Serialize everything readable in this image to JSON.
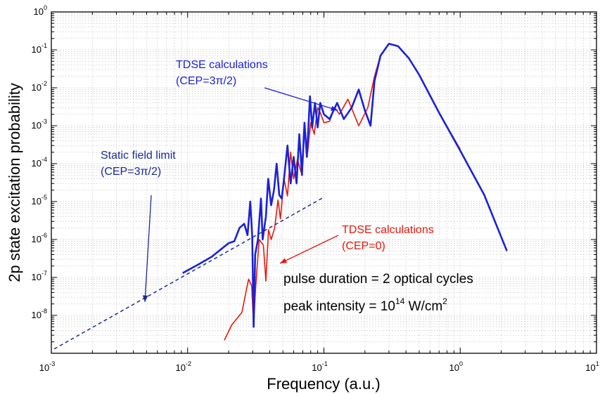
{
  "chart_data": {
    "type": "line",
    "xlabel": "Frequency (a.u.)",
    "ylabel": "2p state excitation probability",
    "xscale": "log",
    "yscale": "log",
    "xlim": [
      0.001,
      10
    ],
    "ylim": [
      1e-09,
      1
    ],
    "grid": true,
    "x_ticks": [
      {
        "base": "10",
        "exp": "-3"
      },
      {
        "base": "10",
        "exp": "-2"
      },
      {
        "base": "10",
        "exp": "-1"
      },
      {
        "base": "10",
        "exp": "0"
      },
      {
        "base": "10",
        "exp": "1"
      }
    ],
    "y_ticks": [
      {
        "base": "10",
        "exp": "0"
      },
      {
        "base": "10",
        "exp": "-1"
      },
      {
        "base": "10",
        "exp": "-2"
      },
      {
        "base": "10",
        "exp": "-3"
      },
      {
        "base": "10",
        "exp": "-4"
      },
      {
        "base": "10",
        "exp": "-5"
      },
      {
        "base": "10",
        "exp": "-6"
      },
      {
        "base": "10",
        "exp": "-7"
      },
      {
        "base": "10",
        "exp": "-8"
      }
    ],
    "series": [
      {
        "color": "#e8180c",
        "style": "solid",
        "points": [
          [
            0.0186,
            2.2e-09
          ],
          [
            0.021,
            5.5e-09
          ],
          [
            0.025,
            1.2e-08
          ],
          [
            0.028,
            9e-08
          ],
          [
            0.0295,
            6e-08
          ],
          [
            0.0305,
            5e-09
          ],
          [
            0.0315,
            5e-08
          ],
          [
            0.0335,
            1e-06
          ],
          [
            0.036,
            7e-07
          ],
          [
            0.0375,
            8e-08
          ],
          [
            0.0392,
            1.8e-06
          ],
          [
            0.041,
            1e-06
          ],
          [
            0.0435,
            2e-06
          ],
          [
            0.046,
            1.1e-05
          ],
          [
            0.048,
            3.5e-06
          ],
          [
            0.051,
            4e-05
          ],
          [
            0.054,
            1.4e-05
          ],
          [
            0.057,
            0.0002
          ],
          [
            0.06,
            4e-05
          ],
          [
            0.064,
            0.00013
          ],
          [
            0.068,
            6e-05
          ],
          [
            0.072,
            0.0007
          ],
          [
            0.076,
            0.0002
          ],
          [
            0.08,
            0.0012
          ],
          [
            0.085,
            0.0006
          ],
          [
            0.09,
            0.003
          ],
          [
            0.095,
            0.002
          ],
          [
            0.1,
            0.0012
          ],
          [
            0.11,
            0.0013
          ],
          [
            0.12,
            0.003
          ],
          [
            0.13,
            0.002
          ],
          [
            0.15,
            0.005
          ],
          [
            0.18,
            0.001
          ],
          [
            0.21,
            0.003
          ],
          [
            0.235,
            0.02
          ],
          [
            0.26,
            0.07
          ],
          [
            0.3,
            0.145
          ],
          [
            0.35,
            0.125
          ],
          [
            0.42,
            0.06
          ],
          [
            0.5,
            0.022
          ],
          [
            0.7,
            0.0022
          ],
          [
            1.0,
            0.00024
          ]
        ]
      },
      {
        "color": "#1a22d8",
        "style": "solid",
        "points": [
          [
            0.0092,
            1.3e-07
          ],
          [
            0.012,
            2.2e-07
          ],
          [
            0.015,
            3.5e-07
          ],
          [
            0.02,
            8e-07
          ],
          [
            0.022,
            9e-07
          ],
          [
            0.024,
            2e-06
          ],
          [
            0.026,
            2.6e-06
          ],
          [
            0.0275,
            1.3e-06
          ],
          [
            0.0288,
            1e-05
          ],
          [
            0.0298,
            1.2e-06
          ],
          [
            0.0305,
            5e-09
          ],
          [
            0.0313,
            4e-07
          ],
          [
            0.0328,
            1e-06
          ],
          [
            0.0345,
            1.2e-05
          ],
          [
            0.0355,
            1e-06
          ],
          [
            0.0375,
            4e-06
          ],
          [
            0.039,
            4e-05
          ],
          [
            0.041,
            8e-06
          ],
          [
            0.043,
            2e-05
          ],
          [
            0.045,
            0.0001
          ],
          [
            0.047,
            1.5e-05
          ],
          [
            0.049,
            1.2e-05
          ],
          [
            0.051,
            4e-05
          ],
          [
            0.054,
            0.0003
          ],
          [
            0.057,
            3e-05
          ],
          [
            0.06,
            0.00015
          ],
          [
            0.063,
            3e-05
          ],
          [
            0.066,
            0.0006
          ],
          [
            0.069,
            5e-05
          ],
          [
            0.072,
            0.0012
          ],
          [
            0.075,
            0.00015
          ],
          [
            0.079,
            0.006
          ],
          [
            0.082,
            0.0009
          ],
          [
            0.086,
            0.004
          ],
          [
            0.09,
            0.0009
          ],
          [
            0.094,
            0.004
          ],
          [
            0.1,
            0.002
          ],
          [
            0.11,
            0.0015
          ],
          [
            0.125,
            0.004
          ],
          [
            0.14,
            0.0015
          ],
          [
            0.16,
            0.003
          ],
          [
            0.18,
            0.009
          ],
          [
            0.2,
            0.0025
          ],
          [
            0.22,
            0.001
          ],
          [
            0.235,
            0.015
          ],
          [
            0.26,
            0.07
          ],
          [
            0.3,
            0.145
          ],
          [
            0.35,
            0.125
          ],
          [
            0.42,
            0.06
          ],
          [
            0.5,
            0.022
          ],
          [
            0.7,
            0.0022
          ],
          [
            1.0,
            0.00022
          ],
          [
            1.5,
            1.5e-05
          ],
          [
            2.2,
            5e-07
          ]
        ]
      },
      {
        "color": "#1a2a9a",
        "style": "dashed",
        "points": [
          [
            0.00105,
            1.3e-09
          ],
          [
            0.1,
            1.3e-05
          ]
        ]
      }
    ],
    "annotations": [
      {
        "lines": [
          "TDSE calculations",
          "(CEP=3π/2)"
        ],
        "color": "#1a22d8"
      },
      {
        "lines": [
          "Static field limit",
          "(CEP=3π/2)"
        ],
        "color": "#1a2a9a"
      },
      {
        "lines": [
          "TDSE calculations",
          "(CEP=0)"
        ],
        "color": "#e8180c"
      },
      {
        "text": "pulse duration = 2 optical cycles"
      },
      {
        "text": "peak intensity = 10",
        "exp": "14",
        "suffix": " W/cm",
        "suffix_exp": "2"
      }
    ]
  }
}
